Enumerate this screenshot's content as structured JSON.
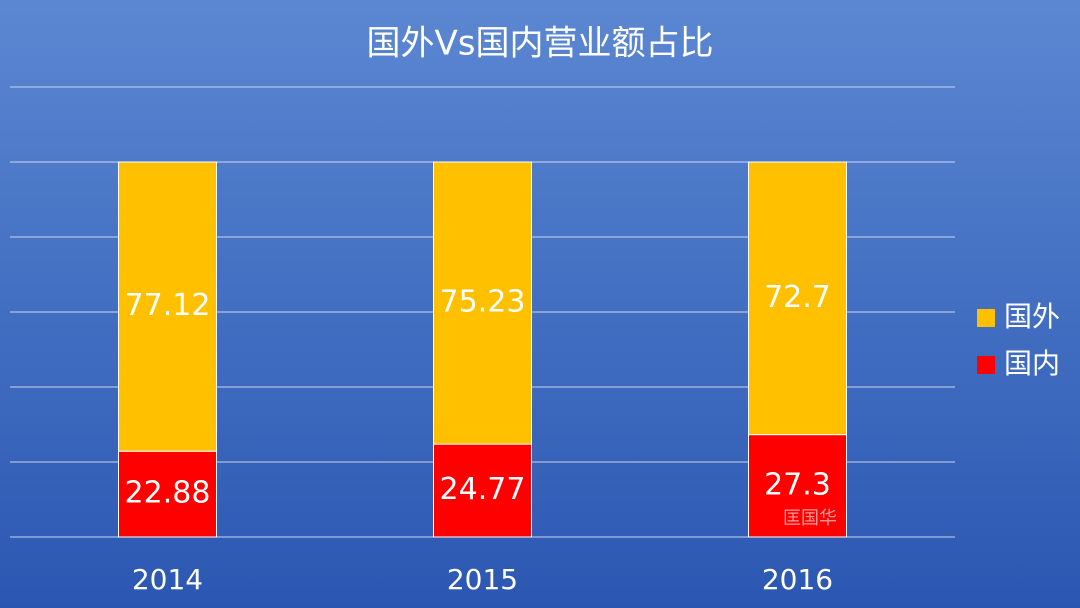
{
  "chart_data": {
    "type": "stacked_bar",
    "title": "国外Vs国内营业额占比",
    "categories": [
      "2014",
      "2015",
      "2016"
    ],
    "series": [
      {
        "name": "国内",
        "color": "#ff0000",
        "values": [
          22.88,
          24.77,
          27.3
        ]
      },
      {
        "name": "国外",
        "color": "#ffc000",
        "values": [
          77.12,
          75.23,
          72.7
        ]
      }
    ],
    "ylim": [
      0,
      120
    ],
    "yticks": [
      0,
      20,
      40,
      60,
      80,
      100,
      120
    ],
    "grid": true,
    "legend": "right",
    "watermark": "匡国华"
  }
}
